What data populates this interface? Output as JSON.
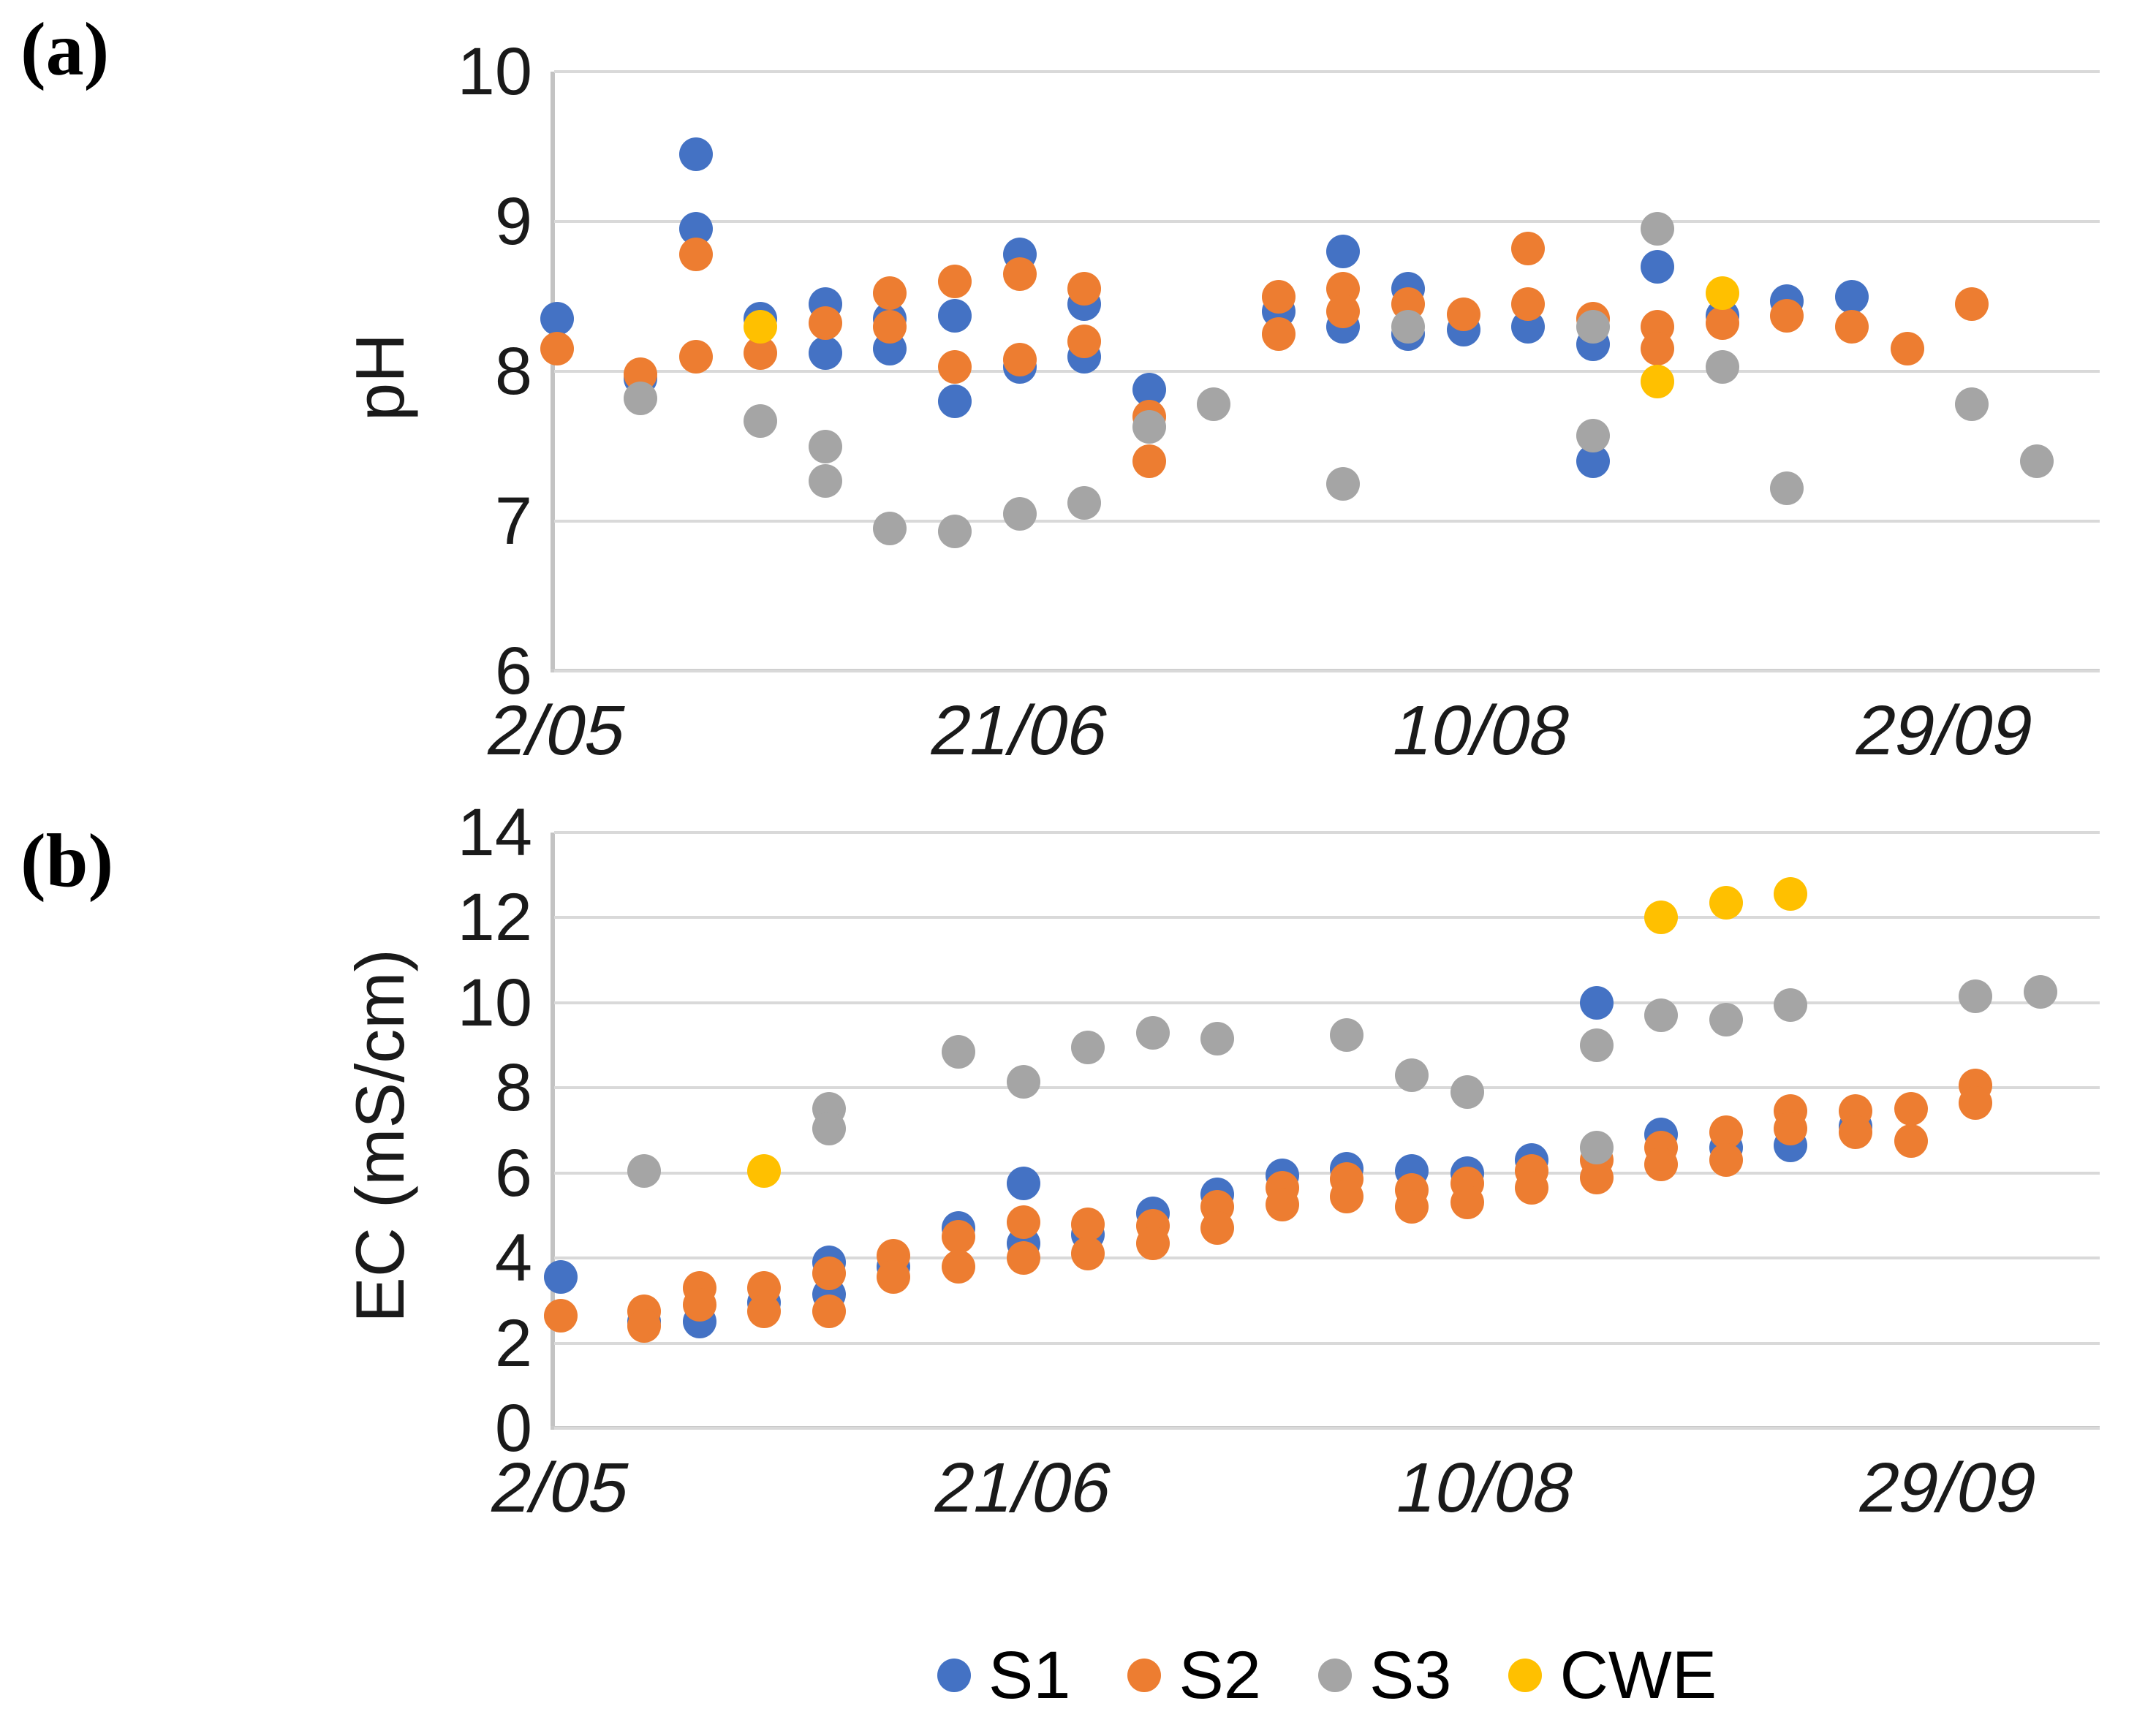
{
  "figure": {
    "panel_a_tag": "(a)",
    "panel_b_tag": "(b)",
    "legend": [
      "S1",
      "S2",
      "S3",
      "CWE"
    ]
  },
  "series_colors": {
    "S1": "#4472C4",
    "S2": "#ED7D31",
    "S3": "#A5A5A5",
    "CWE": "#FFC000"
  },
  "chart_data": [
    {
      "type": "scatter",
      "panel": "a",
      "title": "",
      "ylabel": "pH",
      "ylim": [
        6,
        10
      ],
      "y_ticks": [
        10,
        9,
        8,
        7,
        6
      ],
      "grid": "horizontal",
      "x_unit": "days since 2/05 (estimated from axis)",
      "xlim": [
        -0.5,
        166
      ],
      "x_ticks": [
        {
          "label": "2/05",
          "day": 0
        },
        {
          "label": "21/06",
          "day": 50
        },
        {
          "label": "10/08",
          "day": 100
        },
        {
          "label": "29/09",
          "day": 150
        }
      ],
      "series": [
        {
          "name": "S1",
          "points": [
            [
              0,
              8.35
            ],
            [
              9,
              7.95
            ],
            [
              15,
              9.45
            ],
            [
              15,
              8.95
            ],
            [
              22,
              8.35
            ],
            [
              29,
              8.45
            ],
            [
              29,
              8.12
            ],
            [
              36,
              8.35
            ],
            [
              36,
              8.15
            ],
            [
              43,
              8.37
            ],
            [
              43,
              7.8
            ],
            [
              50,
              8.78
            ],
            [
              50,
              8.03
            ],
            [
              57,
              8.45
            ],
            [
              57,
              8.1
            ],
            [
              64,
              7.88
            ],
            [
              78,
              8.4
            ],
            [
              85,
              8.8
            ],
            [
              85,
              8.3
            ],
            [
              92,
              8.55
            ],
            [
              92,
              8.25
            ],
            [
              98,
              8.28
            ],
            [
              105,
              8.3
            ],
            [
              112,
              8.18
            ],
            [
              112,
              7.4
            ],
            [
              119,
              8.7
            ],
            [
              126,
              8.37
            ],
            [
              133,
              8.47
            ],
            [
              140,
              8.5
            ]
          ]
        },
        {
          "name": "S2",
          "points": [
            [
              0,
              8.15
            ],
            [
              9,
              7.98
            ],
            [
              15,
              8.78
            ],
            [
              15,
              8.1
            ],
            [
              22,
              8.12
            ],
            [
              29,
              8.32
            ],
            [
              36,
              8.52
            ],
            [
              36,
              8.3
            ],
            [
              43,
              8.6
            ],
            [
              43,
              8.03
            ],
            [
              50,
              8.65
            ],
            [
              50,
              8.08
            ],
            [
              57,
              8.55
            ],
            [
              57,
              8.2
            ],
            [
              64,
              7.7
            ],
            [
              64,
              7.4
            ],
            [
              78,
              8.5
            ],
            [
              78,
              8.25
            ],
            [
              85,
              8.55
            ],
            [
              85,
              8.4
            ],
            [
              92,
              8.45
            ],
            [
              98,
              8.38
            ],
            [
              105,
              8.82
            ],
            [
              105,
              8.45
            ],
            [
              112,
              8.35
            ],
            [
              119,
              8.3
            ],
            [
              119,
              8.15
            ],
            [
              126,
              8.32
            ],
            [
              133,
              8.37
            ],
            [
              140,
              8.3
            ],
            [
              146,
              8.15
            ],
            [
              153,
              8.45
            ]
          ]
        },
        {
          "name": "S3",
          "points": [
            [
              9,
              7.82
            ],
            [
              22,
              7.67
            ],
            [
              29,
              7.5
            ],
            [
              29,
              7.27
            ],
            [
              36,
              6.95
            ],
            [
              43,
              6.93
            ],
            [
              50,
              7.05
            ],
            [
              57,
              7.12
            ],
            [
              64,
              7.63
            ],
            [
              71,
              7.78
            ],
            [
              85,
              7.25
            ],
            [
              92,
              8.3
            ],
            [
              112,
              8.3
            ],
            [
              112,
              7.57
            ],
            [
              119,
              8.95
            ],
            [
              126,
              8.03
            ],
            [
              133,
              7.22
            ],
            [
              153,
              7.78
            ],
            [
              160,
              7.4
            ]
          ]
        },
        {
          "name": "CWE",
          "points": [
            [
              22,
              8.3
            ],
            [
              119,
              7.93
            ],
            [
              126,
              8.52
            ]
          ]
        }
      ]
    },
    {
      "type": "scatter",
      "panel": "b",
      "title": "",
      "ylabel": "EC (mS/cm)",
      "ylim": [
        0,
        14
      ],
      "y_ticks": [
        14,
        12,
        10,
        8,
        6,
        4,
        2,
        0
      ],
      "grid": "horizontal",
      "x_unit": "days since 2/05 (estimated from axis)",
      "xlim": [
        -0.5,
        166
      ],
      "x_ticks": [
        {
          "label": "2/05",
          "day": 0
        },
        {
          "label": "21/06",
          "day": 50
        },
        {
          "label": "10/08",
          "day": 100
        },
        {
          "label": "29/09",
          "day": 150
        }
      ],
      "series": [
        {
          "name": "S1",
          "points": [
            [
              0,
              3.55
            ],
            [
              9,
              2.5
            ],
            [
              15,
              2.5
            ],
            [
              22,
              2.95
            ],
            [
              29,
              3.9
            ],
            [
              29,
              3.15
            ],
            [
              36,
              3.8
            ],
            [
              43,
              4.7
            ],
            [
              50,
              5.75
            ],
            [
              50,
              4.35
            ],
            [
              57,
              4.55
            ],
            [
              64,
              5.05
            ],
            [
              71,
              5.5
            ],
            [
              78,
              5.95
            ],
            [
              85,
              6.1
            ],
            [
              92,
              6.05
            ],
            [
              98,
              6.0
            ],
            [
              105,
              6.3
            ],
            [
              112,
              10.0
            ],
            [
              119,
              6.9
            ],
            [
              126,
              6.6
            ],
            [
              133,
              6.65
            ],
            [
              140,
              7.1
            ]
          ]
        },
        {
          "name": "S2",
          "points": [
            [
              0,
              2.65
            ],
            [
              9,
              2.75
            ],
            [
              9,
              2.4
            ],
            [
              15,
              3.3
            ],
            [
              15,
              2.9
            ],
            [
              22,
              3.3
            ],
            [
              22,
              2.75
            ],
            [
              29,
              3.65
            ],
            [
              29,
              2.75
            ],
            [
              36,
              4.05
            ],
            [
              36,
              3.55
            ],
            [
              43,
              4.5
            ],
            [
              43,
              3.8
            ],
            [
              50,
              4.85
            ],
            [
              50,
              4.0
            ],
            [
              57,
              4.8
            ],
            [
              57,
              4.1
            ],
            [
              64,
              4.75
            ],
            [
              64,
              4.35
            ],
            [
              71,
              5.2
            ],
            [
              71,
              4.7
            ],
            [
              78,
              5.65
            ],
            [
              78,
              5.25
            ],
            [
              85,
              5.85
            ],
            [
              85,
              5.45
            ],
            [
              92,
              5.6
            ],
            [
              92,
              5.2
            ],
            [
              98,
              5.75
            ],
            [
              98,
              5.3
            ],
            [
              105,
              6.05
            ],
            [
              105,
              5.65
            ],
            [
              112,
              6.3
            ],
            [
              112,
              5.9
            ],
            [
              119,
              6.6
            ],
            [
              119,
              6.2
            ],
            [
              126,
              6.95
            ],
            [
              126,
              6.3
            ],
            [
              133,
              7.45
            ],
            [
              133,
              7.05
            ],
            [
              140,
              7.45
            ],
            [
              140,
              6.95
            ],
            [
              146,
              7.5
            ],
            [
              146,
              6.75
            ],
            [
              153,
              8.05
            ],
            [
              153,
              7.65
            ]
          ]
        },
        {
          "name": "S3",
          "points": [
            [
              9,
              6.05
            ],
            [
              29,
              7.5
            ],
            [
              29,
              7.05
            ],
            [
              43,
              8.85
            ],
            [
              50,
              8.15
            ],
            [
              57,
              8.95
            ],
            [
              64,
              9.3
            ],
            [
              71,
              9.15
            ],
            [
              85,
              9.25
            ],
            [
              92,
              8.3
            ],
            [
              98,
              7.9
            ],
            [
              112,
              9.0
            ],
            [
              112,
              6.6
            ],
            [
              119,
              9.7
            ],
            [
              126,
              9.6
            ],
            [
              133,
              9.95
            ],
            [
              153,
              10.15
            ],
            [
              160,
              10.25
            ]
          ]
        },
        {
          "name": "CWE",
          "points": [
            [
              22,
              6.05
            ],
            [
              119,
              12.0
            ],
            [
              126,
              12.35
            ],
            [
              133,
              12.55
            ]
          ]
        }
      ]
    }
  ]
}
